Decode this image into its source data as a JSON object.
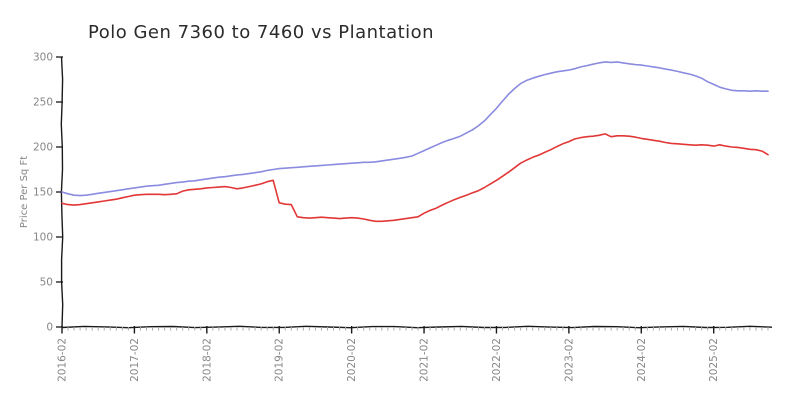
{
  "chart_data": {
    "type": "line",
    "title": "Polo Gen 7360 to 7460 vs Plantation",
    "xlabel": "",
    "ylabel": "Price Per Sq Ft",
    "ylim": [
      0,
      300
    ],
    "yticks": [
      0,
      50,
      100,
      150,
      200,
      250,
      300
    ],
    "x_start": "2016-02",
    "x_end": "2025-11",
    "x_freq": "monthly",
    "n_points": 118,
    "xtick_labels": [
      "2016-02",
      "2017-02",
      "2018-02",
      "2019-02",
      "2020-02",
      "2021-02",
      "2022-02",
      "2023-02",
      "2024-02",
      "2025-02"
    ],
    "xtick_indices": [
      0,
      12,
      24,
      36,
      48,
      60,
      72,
      84,
      96,
      108
    ],
    "grid": false,
    "legend": "none",
    "style": "xkcd-sketch",
    "colors": {
      "blue_line": "#8b8be0",
      "red_line": "#e23737",
      "axis": "#1a1a1a",
      "minor_tick": "#aaaaaa",
      "tick_label": "#878787",
      "title": "#2b2b2b"
    },
    "series": [
      {
        "name": "blue-line",
        "color": "#8b8be0",
        "values": [
          150,
          148,
          146.5,
          146,
          146.5,
          147.5,
          148.5,
          149.5,
          150.5,
          151.5,
          152.5,
          153.5,
          154.5,
          155.5,
          156.5,
          157,
          157.5,
          158.5,
          159.5,
          160.5,
          161,
          162,
          162.5,
          163.5,
          164.5,
          165.5,
          166.5,
          167,
          168,
          169,
          169.5,
          170.5,
          171.5,
          172.5,
          174,
          175,
          176,
          176.5,
          177,
          177.5,
          178,
          178.5,
          179,
          179.5,
          180,
          180.5,
          181,
          181.5,
          182,
          182.5,
          183,
          183,
          183.5,
          184.5,
          185.5,
          186.5,
          187.5,
          188.5,
          190,
          193,
          196,
          199,
          202,
          205,
          207.5,
          209.5,
          212,
          215.5,
          219,
          223.5,
          229,
          236,
          243,
          251,
          258.5,
          265,
          270.5,
          274,
          276.5,
          278.5,
          280.5,
          282,
          283.5,
          284.5,
          285.5,
          287,
          289,
          290.5,
          292,
          293.5,
          294.5,
          294,
          294.5,
          293.5,
          292.5,
          291.5,
          291,
          290,
          289,
          288,
          286.5,
          285.5,
          284,
          282.5,
          281,
          279,
          276.5,
          272.5,
          269.5,
          266.5,
          264.5,
          263,
          262.5,
          262.5,
          262,
          262.5,
          262,
          262
        ]
      },
      {
        "name": "red-line",
        "color": "#e23737",
        "values": [
          137.5,
          136,
          135.5,
          136,
          137,
          138,
          139,
          140,
          141,
          142,
          143.5,
          145,
          146.5,
          147,
          147.5,
          147.5,
          147.5,
          147,
          147.5,
          148,
          151,
          152.5,
          153,
          153.5,
          154.5,
          155,
          155.5,
          156,
          155,
          153.5,
          154.5,
          156,
          157.5,
          159,
          161.5,
          163,
          138,
          136.5,
          136,
          122.5,
          121.5,
          121,
          121.5,
          122,
          121.5,
          121,
          120.5,
          121,
          121.5,
          121,
          120,
          118.5,
          117.5,
          117.5,
          118,
          118.5,
          119.5,
          120.5,
          121.5,
          122.5,
          126.5,
          129.5,
          132,
          135.5,
          138.5,
          141.5,
          144,
          146.5,
          149,
          151.5,
          155,
          159,
          163,
          167.5,
          172,
          177,
          182,
          185.5,
          188.5,
          191,
          194,
          197,
          200.5,
          203.5,
          206,
          209,
          210.5,
          211.5,
          212,
          213,
          214.5,
          211.5,
          212.5,
          212.5,
          212,
          211,
          209.5,
          208.5,
          207.5,
          206.5,
          205,
          204,
          203.5,
          203,
          202.5,
          202,
          202.5,
          202,
          201,
          202.5,
          201,
          200,
          199.5,
          198.5,
          197.5,
          197,
          195.5,
          191.5
        ]
      }
    ]
  }
}
